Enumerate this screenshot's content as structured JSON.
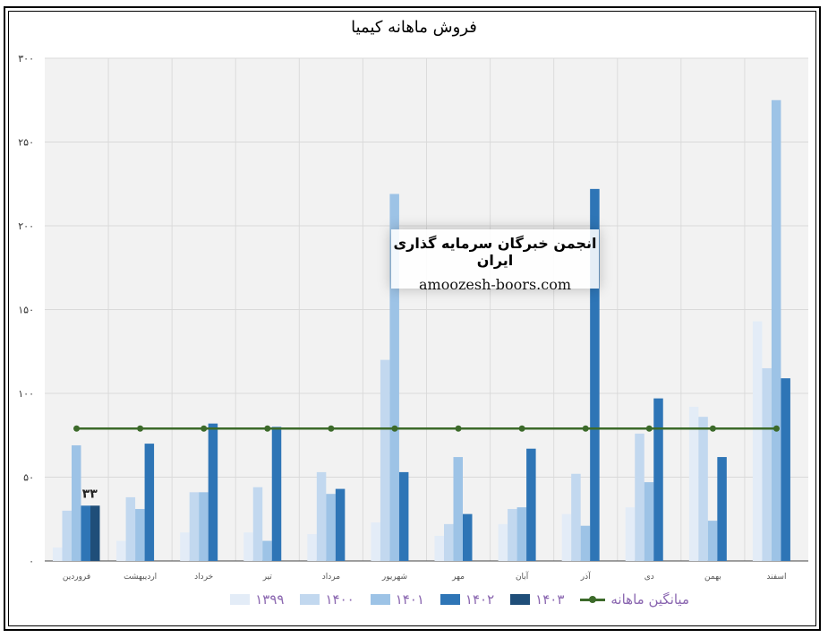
{
  "chart_data": {
    "type": "bar",
    "title": "فروش ماهانه کیمیا",
    "categories": [
      "فروردین",
      "اردیبهشت",
      "خرداد",
      "تیر",
      "مرداد",
      "شهریور",
      "مهر",
      "آبان",
      "آذر",
      "دی",
      "بهمن",
      "اسفند"
    ],
    "series": [
      {
        "name": "۱۳۹۹",
        "color": "#e3ecf7",
        "values": [
          8,
          12,
          17,
          17,
          16,
          23,
          15,
          22,
          28,
          32,
          92,
          143
        ]
      },
      {
        "name": "۱۴۰۰",
        "color": "#c2d8ef",
        "values": [
          30,
          38,
          41,
          44,
          53,
          120,
          22,
          31,
          52,
          76,
          86,
          115
        ]
      },
      {
        "name": "۱۴۰۱",
        "color": "#9dc3e6",
        "values": [
          69,
          31,
          41,
          12,
          40,
          219,
          62,
          32,
          21,
          47,
          24,
          275
        ]
      },
      {
        "name": "۱۴۰۲",
        "color": "#2e75b6",
        "values": [
          33,
          70,
          82,
          80,
          43,
          53,
          28,
          67,
          222,
          97,
          62,
          109
        ]
      },
      {
        "name": "۱۴۰۳",
        "color": "#1f4e79",
        "values": [
          33,
          null,
          null,
          null,
          null,
          null,
          null,
          null,
          null,
          null,
          null,
          null
        ]
      }
    ],
    "line": {
      "name": "میانگین ماهانه",
      "color": "#3c6a2a",
      "value": 79
    },
    "data_labels": [
      {
        "category": "فروردین",
        "series": "۱۴۰۳",
        "text": "۳۳"
      }
    ],
    "y_ticks": [
      "۰",
      "۵۰",
      "۱۰۰",
      "۱۵۰",
      "۲۰۰",
      "۲۵۰",
      "۳۰۰"
    ],
    "ylim": [
      0,
      300
    ],
    "grid": true,
    "legend_position": "bottom"
  },
  "watermark": {
    "title": "انجمن خبرگان سرمایه گذاری ایران",
    "url": "amoozesh-boors.com"
  }
}
